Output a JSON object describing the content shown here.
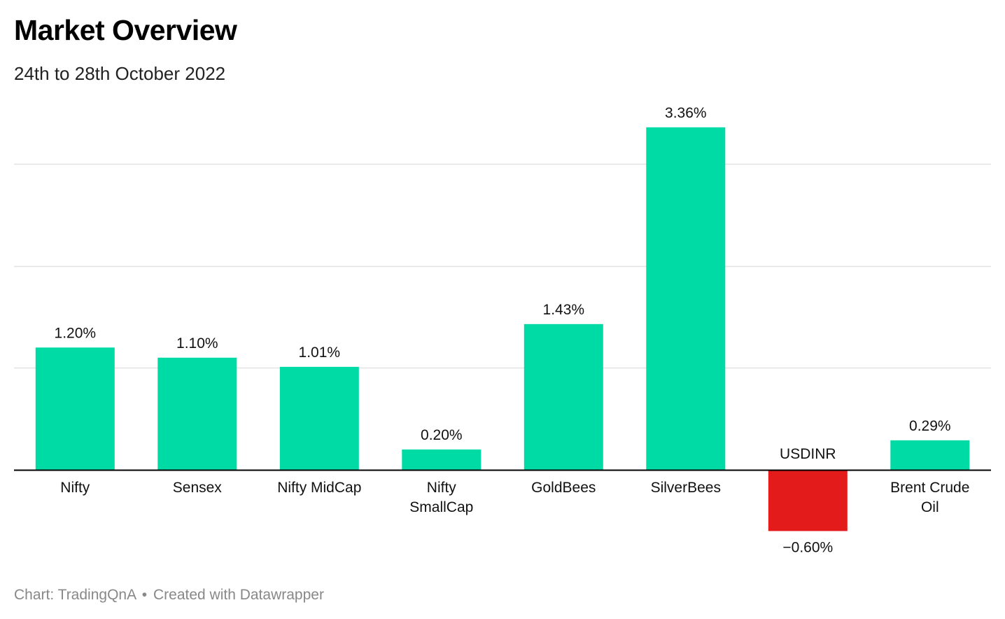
{
  "title": "Market Overview",
  "subtitle": "24th to 28th October 2022",
  "footer": {
    "source": "Chart: TradingQnA",
    "separator": "•",
    "credit": "Created with Datawrapper"
  },
  "colors": {
    "positive": "#00dba6",
    "negative": "#e31b1b",
    "grid": "#e2e2e2",
    "axis": "#000000",
    "label": "#111111"
  },
  "chart_data": {
    "type": "bar",
    "title": "Market Overview",
    "subtitle": "24th to 28th October 2022",
    "categories": [
      "Nifty",
      "Sensex",
      "Nifty MidCap",
      "Nifty SmallCap",
      "GoldBees",
      "SilverBees",
      "USDINR",
      "Brent Crude Oil"
    ],
    "category_labels": [
      [
        "Nifty"
      ],
      [
        "Sensex"
      ],
      [
        "Nifty MidCap"
      ],
      [
        "Nifty",
        "SmallCap"
      ],
      [
        "GoldBees"
      ],
      [
        "SilverBees"
      ],
      [
        "USDINR"
      ],
      [
        "Brent Crude",
        "Oil"
      ]
    ],
    "values": [
      1.2,
      1.1,
      1.01,
      0.2,
      1.43,
      3.36,
      -0.6,
      0.29
    ],
    "value_labels": [
      "1.20%",
      "1.10%",
      "1.01%",
      "0.20%",
      "1.43%",
      "3.36%",
      "−0.60%",
      "0.29%"
    ],
    "xlabel": "",
    "ylabel": "",
    "ylim": [
      -0.6,
      3.36
    ],
    "gridlines": [
      1,
      2,
      3
    ],
    "grid": true,
    "legend": "none"
  }
}
